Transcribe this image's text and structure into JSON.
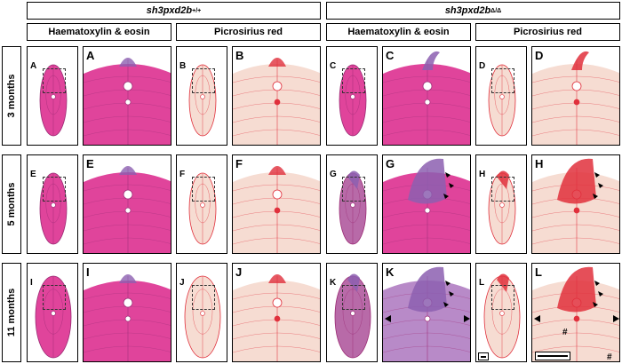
{
  "headers": {
    "wt_genotype": {
      "base": "sh3pxd2b",
      "sup": "+/+"
    },
    "mut_genotype": {
      "base": "sh3pxd2b",
      "sup": "Δ/Δ"
    },
    "he": "Haematoxylin & eosin",
    "pr": "Picrosirius red"
  },
  "rows": [
    "3 months",
    "5 months",
    "11 months"
  ],
  "panel_letters": [
    "A",
    "B",
    "C",
    "D",
    "E",
    "F",
    "G",
    "H",
    "I",
    "J",
    "K",
    "L"
  ],
  "hash_symbol": "#",
  "colors": {
    "he_tissue": "#e0449b",
    "he_dark": "#b86aa8",
    "he_purple": "#8c5fb0",
    "pr_tissue": "#f6dcd2",
    "pr_red": "#e0303c"
  }
}
